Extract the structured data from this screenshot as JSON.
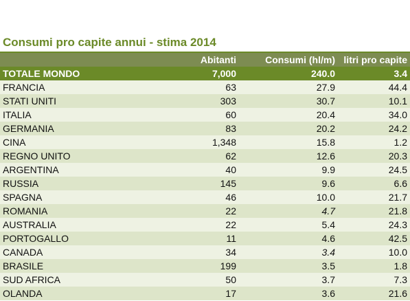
{
  "title": "Consumi pro capite annui - stima 2014",
  "headers": {
    "country": "",
    "abitanti": "Abitanti",
    "consumi": "Consumi (hl/m)",
    "litri": "litri pro capite"
  },
  "total": {
    "country": "TOTALE MONDO",
    "abitanti": "7,000",
    "consumi": "240.0",
    "litri": "3.4"
  },
  "rows": [
    {
      "country": "FRANCIA",
      "abitanti": "63",
      "consumi": "27.9",
      "litri": "44.4"
    },
    {
      "country": "STATI UNITI",
      "abitanti": "303",
      "consumi": "30.7",
      "litri": "10.1"
    },
    {
      "country": "ITALIA",
      "abitanti": "60",
      "consumi": "20.4",
      "litri": "34.0"
    },
    {
      "country": "GERMANIA",
      "abitanti": "83",
      "consumi": "20.2",
      "litri": "24.2"
    },
    {
      "country": "CINA",
      "abitanti": "1,348",
      "consumi": "15.8",
      "litri": "1.2"
    },
    {
      "country": "REGNO UNITO",
      "abitanti": "62",
      "consumi": "12.6",
      "litri": "20.3"
    },
    {
      "country": "ARGENTINA",
      "abitanti": "40",
      "consumi": "9.9",
      "litri": "24.5"
    },
    {
      "country": "RUSSIA",
      "abitanti": "145",
      "consumi": "9.6",
      "litri": "6.6"
    },
    {
      "country": "SPAGNA",
      "abitanti": "46",
      "consumi": "10.0",
      "litri": "21.7"
    },
    {
      "country": "ROMANIA",
      "abitanti": "22",
      "consumi": "4.7",
      "litri": "21.8",
      "consumi_italic": true
    },
    {
      "country": "AUSTRALIA",
      "abitanti": "22",
      "consumi": "5.4",
      "litri": "24.3"
    },
    {
      "country": "PORTOGALLO",
      "abitanti": "11",
      "consumi": "4.6",
      "litri": "42.5"
    },
    {
      "country": "CANADA",
      "abitanti": "34",
      "consumi": "3.4",
      "litri": "10.0",
      "consumi_italic": true
    },
    {
      "country": "BRASILE",
      "abitanti": "199",
      "consumi": "3.5",
      "litri": "1.8"
    },
    {
      "country": "SUD AFRICA",
      "abitanti": "50",
      "consumi": "3.7",
      "litri": "7.3"
    },
    {
      "country": "OLANDA",
      "abitanti": "17",
      "consumi": "3.6",
      "litri": "21.6"
    }
  ],
  "colors": {
    "title": "#6b8a28",
    "header_bg": "#7d8c52",
    "total_bg": "#6b8a28",
    "row_light": "#eef2e3",
    "row_dark": "#dde5c9"
  }
}
